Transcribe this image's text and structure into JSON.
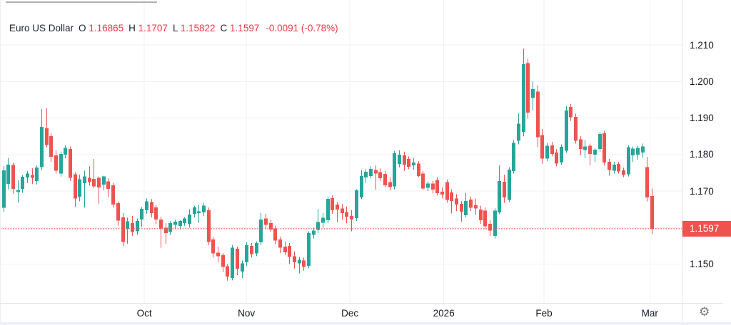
{
  "header": {
    "symbol": "Euro US Dollar",
    "fields": [
      {
        "label": "O",
        "value": "1.16865"
      },
      {
        "label": "H",
        "value": "1.1707"
      },
      {
        "label": "L",
        "value": "1.15822"
      },
      {
        "label": "C",
        "value": "1.1597"
      }
    ],
    "change": "-0.0091",
    "change_pct": "(-0.78%)"
  },
  "y_axis": {
    "ticks": [
      {
        "price": 1.21,
        "label": "1.210"
      },
      {
        "price": 1.2,
        "label": "1.200"
      },
      {
        "price": 1.19,
        "label": "1.190"
      },
      {
        "price": 1.18,
        "label": "1.180"
      },
      {
        "price": 1.17,
        "label": "1.170"
      },
      {
        "price": 1.15,
        "label": "1.150"
      }
    ],
    "price_label": "1.1597"
  },
  "x_axis": {
    "ticks": [
      {
        "label": "Oct",
        "index": 29.6
      },
      {
        "label": "Nov",
        "index": 51.0
      },
      {
        "label": "Dec",
        "index": 72.7
      },
      {
        "label": "2026",
        "index": 92.4
      },
      {
        "label": "Feb",
        "index": 113.4
      },
      {
        "label": "Mar",
        "index": 135.6
      }
    ]
  },
  "icons": {
    "settings_glyph": "⚙"
  },
  "colors": {
    "up": "#26A69A",
    "down": "#EF5350",
    "accent_red": "#F23645",
    "price_label_bg": "#F0524E",
    "dotted_line": "#F0524E",
    "grid": "#F0F2F6",
    "axis_border": "#E0E3EB",
    "text": "#131722",
    "icon_grey": "#787B86"
  },
  "chart_data": {
    "type": "candlestick",
    "title": "Euro US Dollar",
    "timeframe_shown": "Sep 2025 - Mar 2026, daily",
    "last": {
      "o": 1.16865,
      "h": 1.1707,
      "l": 1.15822,
      "c": 1.1597
    },
    "change": -0.0091,
    "change_pct": -0.78,
    "price_line": 1.1597,
    "y_gridline_prices": [
      1.21,
      1.2,
      1.19,
      1.18,
      1.17,
      1.16,
      1.15
    ],
    "ylim": [
      1.1394,
      1.2223
    ],
    "x_months": [
      "Oct",
      "Nov",
      "Dec",
      "2026",
      "Feb",
      "Mar"
    ],
    "candles": [
      [
        1.1654,
        1.1768,
        1.1643,
        1.1757
      ],
      [
        1.172,
        1.179,
        1.1705,
        1.1772
      ],
      [
        1.1771,
        1.1778,
        1.1693,
        1.1706
      ],
      [
        1.1697,
        1.173,
        1.1668,
        1.1703
      ],
      [
        1.1706,
        1.1744,
        1.1695,
        1.1739
      ],
      [
        1.1737,
        1.1755,
        1.1722,
        1.1748
      ],
      [
        1.1744,
        1.1762,
        1.172,
        1.1736
      ],
      [
        1.1728,
        1.177,
        1.1718,
        1.1765
      ],
      [
        1.1766,
        1.1925,
        1.1758,
        1.1876
      ],
      [
        1.1872,
        1.1927,
        1.182,
        1.1826
      ],
      [
        1.185,
        1.1858,
        1.178,
        1.1794
      ],
      [
        1.1798,
        1.1812,
        1.1748,
        1.1756
      ],
      [
        1.1748,
        1.1808,
        1.174,
        1.1802
      ],
      [
        1.18,
        1.1825,
        1.179,
        1.1818
      ],
      [
        1.1815,
        1.1822,
        1.1728,
        1.1736
      ],
      [
        1.1746,
        1.1752,
        1.1657,
        1.168
      ],
      [
        1.1685,
        1.1745,
        1.1672,
        1.1732
      ],
      [
        1.1722,
        1.1756,
        1.1655,
        1.174
      ],
      [
        1.1736,
        1.1768,
        1.1715,
        1.1725
      ],
      [
        1.1733,
        1.1788,
        1.1708,
        1.1713
      ],
      [
        1.1736,
        1.174,
        1.1665,
        1.171
      ],
      [
        1.1718,
        1.1742,
        1.1702,
        1.174
      ],
      [
        1.1727,
        1.1735,
        1.1683,
        1.1706
      ],
      [
        1.1716,
        1.1722,
        1.1655,
        1.1663
      ],
      [
        1.1667,
        1.1672,
        1.1605,
        1.1619
      ],
      [
        1.1628,
        1.164,
        1.1549,
        1.1561
      ],
      [
        1.1597,
        1.1627,
        1.1556,
        1.1617
      ],
      [
        1.1612,
        1.1632,
        1.1578,
        1.1588
      ],
      [
        1.159,
        1.1625,
        1.158,
        1.1618
      ],
      [
        1.1622,
        1.1656,
        1.1602,
        1.1651
      ],
      [
        1.1648,
        1.168,
        1.1638,
        1.1672
      ],
      [
        1.167,
        1.1678,
        1.1628,
        1.164
      ],
      [
        1.1655,
        1.1662,
        1.161,
        1.1622
      ],
      [
        1.1622,
        1.163,
        1.1545,
        1.1598
      ],
      [
        1.16,
        1.1612,
        1.1555,
        1.1585
      ],
      [
        1.1588,
        1.1618,
        1.158,
        1.1612
      ],
      [
        1.1608,
        1.1622,
        1.1598,
        1.1616
      ],
      [
        1.1605,
        1.162,
        1.1595,
        1.1618
      ],
      [
        1.1613,
        1.1628,
        1.1605,
        1.1625
      ],
      [
        1.161,
        1.165,
        1.16,
        1.1636
      ],
      [
        1.1638,
        1.166,
        1.1628,
        1.1655
      ],
      [
        1.164,
        1.1662,
        1.1613,
        1.1645
      ],
      [
        1.1642,
        1.1668,
        1.1632,
        1.166
      ],
      [
        1.1648,
        1.1655,
        1.1552,
        1.1561
      ],
      [
        1.1568,
        1.1575,
        1.1518,
        1.153
      ],
      [
        1.1532,
        1.1548,
        1.1505,
        1.1522
      ],
      [
        1.1525,
        1.153,
        1.1478,
        1.1492
      ],
      [
        1.1494,
        1.15,
        1.1455,
        1.1466
      ],
      [
        1.1462,
        1.1552,
        1.1456,
        1.1545
      ],
      [
        1.1542,
        1.1548,
        1.147,
        1.1488
      ],
      [
        1.148,
        1.151,
        1.1462,
        1.1502
      ],
      [
        1.1505,
        1.156,
        1.1495,
        1.1552
      ],
      [
        1.155,
        1.1558,
        1.1518,
        1.1528
      ],
      [
        1.153,
        1.1562,
        1.1522,
        1.1558
      ],
      [
        1.156,
        1.164,
        1.1552,
        1.1622
      ],
      [
        1.1625,
        1.1638,
        1.1598,
        1.1608
      ],
      [
        1.1612,
        1.1622,
        1.1588,
        1.1595
      ],
      [
        1.1598,
        1.1605,
        1.1555,
        1.1565
      ],
      [
        1.1568,
        1.1575,
        1.153,
        1.1545
      ],
      [
        1.1548,
        1.1562,
        1.1525,
        1.1532
      ],
      [
        1.155,
        1.1558,
        1.15,
        1.152
      ],
      [
        1.1522,
        1.1535,
        1.1488,
        1.1505
      ],
      [
        1.1502,
        1.152,
        1.1475,
        1.1512
      ],
      [
        1.151,
        1.1518,
        1.1482,
        1.1492
      ],
      [
        1.1495,
        1.159,
        1.1488,
        1.1585
      ],
      [
        1.158,
        1.16,
        1.157,
        1.1592
      ],
      [
        1.1594,
        1.1651,
        1.1585,
        1.1615
      ],
      [
        1.1613,
        1.164,
        1.16,
        1.1627
      ],
      [
        1.162,
        1.1685,
        1.1612,
        1.1679
      ],
      [
        1.1681,
        1.1688,
        1.1638,
        1.1648
      ],
      [
        1.1663,
        1.167,
        1.1615,
        1.165
      ],
      [
        1.1652,
        1.1665,
        1.1622,
        1.164
      ],
      [
        1.1643,
        1.1658,
        1.1612,
        1.163
      ],
      [
        1.1632,
        1.1648,
        1.159,
        1.1622
      ],
      [
        1.1626,
        1.1705,
        1.1618,
        1.1702
      ],
      [
        1.1683,
        1.1757,
        1.1678,
        1.1741
      ],
      [
        1.1737,
        1.176,
        1.1722,
        1.1753
      ],
      [
        1.1741,
        1.1768,
        1.1735,
        1.1761
      ],
      [
        1.1758,
        1.177,
        1.1704,
        1.1748
      ],
      [
        1.1752,
        1.1762,
        1.1728,
        1.1735
      ],
      [
        1.1747,
        1.1755,
        1.171,
        1.1716
      ],
      [
        1.1725,
        1.1738,
        1.1702,
        1.1711
      ],
      [
        1.1713,
        1.181,
        1.1705,
        1.1804
      ],
      [
        1.1774,
        1.1812,
        1.1765,
        1.18
      ],
      [
        1.1798,
        1.1808,
        1.1755,
        1.1772
      ],
      [
        1.1788,
        1.1795,
        1.176,
        1.1767
      ],
      [
        1.177,
        1.179,
        1.1758,
        1.1778
      ],
      [
        1.1775,
        1.1782,
        1.1738,
        1.1741
      ],
      [
        1.1748,
        1.1755,
        1.1703,
        1.1707
      ],
      [
        1.1709,
        1.1726,
        1.17,
        1.1721
      ],
      [
        1.1721,
        1.1728,
        1.1694,
        1.1704
      ],
      [
        1.173,
        1.1738,
        1.1688,
        1.1694
      ],
      [
        1.1698,
        1.171,
        1.168,
        1.169
      ],
      [
        1.1725,
        1.1732,
        1.1668,
        1.1676
      ],
      [
        1.1696,
        1.1705,
        1.1639,
        1.1673
      ],
      [
        1.168,
        1.1692,
        1.1645,
        1.1663
      ],
      [
        1.1665,
        1.1672,
        1.1616,
        1.1644
      ],
      [
        1.1634,
        1.1696,
        1.1628,
        1.1673
      ],
      [
        1.1677,
        1.1685,
        1.1645,
        1.1654
      ],
      [
        1.1661,
        1.168,
        1.1635,
        1.1652
      ],
      [
        1.165,
        1.166,
        1.161,
        1.162
      ],
      [
        1.1647,
        1.1655,
        1.1597,
        1.1604
      ],
      [
        1.1611,
        1.162,
        1.1577,
        1.1592
      ],
      [
        1.1577,
        1.1653,
        1.157,
        1.1647
      ],
      [
        1.1642,
        1.177,
        1.1637,
        1.1728
      ],
      [
        1.1726,
        1.1745,
        1.1668,
        1.1683
      ],
      [
        1.1676,
        1.1765,
        1.167,
        1.1759
      ],
      [
        1.1755,
        1.184,
        1.1748,
        1.1832
      ],
      [
        1.1838,
        1.1912,
        1.1828,
        1.1885
      ],
      [
        1.1862,
        1.209,
        1.185,
        1.2047
      ],
      [
        1.205,
        1.2062,
        1.1898,
        1.1915
      ],
      [
        1.1955,
        1.2,
        1.192,
        1.1979
      ],
      [
        1.1972,
        1.199,
        1.182,
        1.1848
      ],
      [
        1.1853,
        1.187,
        1.1775,
        1.1789
      ],
      [
        1.1789,
        1.1832,
        1.1782,
        1.1824
      ],
      [
        1.1825,
        1.1835,
        1.1795,
        1.1802
      ],
      [
        1.1806,
        1.1815,
        1.1768,
        1.1775
      ],
      [
        1.1778,
        1.1828,
        1.1772,
        1.1821
      ],
      [
        1.181,
        1.1933,
        1.1805,
        1.1921
      ],
      [
        1.193,
        1.1938,
        1.1892,
        1.1902
      ],
      [
        1.1903,
        1.1912,
        1.183,
        1.1838
      ],
      [
        1.1842,
        1.185,
        1.1798,
        1.1815
      ],
      [
        1.1812,
        1.184,
        1.179,
        1.1822
      ],
      [
        1.1824,
        1.183,
        1.177,
        1.1802
      ],
      [
        1.18,
        1.1818,
        1.1779,
        1.1813
      ],
      [
        1.1815,
        1.1862,
        1.1808,
        1.1856
      ],
      [
        1.1858,
        1.1865,
        1.177,
        1.1778
      ],
      [
        1.178,
        1.1788,
        1.1742,
        1.1758
      ],
      [
        1.1756,
        1.178,
        1.1748,
        1.1772
      ],
      [
        1.1774,
        1.178,
        1.1748,
        1.1754
      ],
      [
        1.1757,
        1.1764,
        1.1738,
        1.1744
      ],
      [
        1.1746,
        1.1825,
        1.174,
        1.182
      ],
      [
        1.1798,
        1.1822,
        1.178,
        1.1816
      ],
      [
        1.18,
        1.1824,
        1.1786,
        1.1818
      ],
      [
        1.1806,
        1.183,
        1.1792,
        1.1822
      ],
      [
        1.1766,
        1.1794,
        1.1672,
        1.1683
      ],
      [
        1.16865,
        1.1707,
        1.15822,
        1.1597
      ]
    ]
  }
}
